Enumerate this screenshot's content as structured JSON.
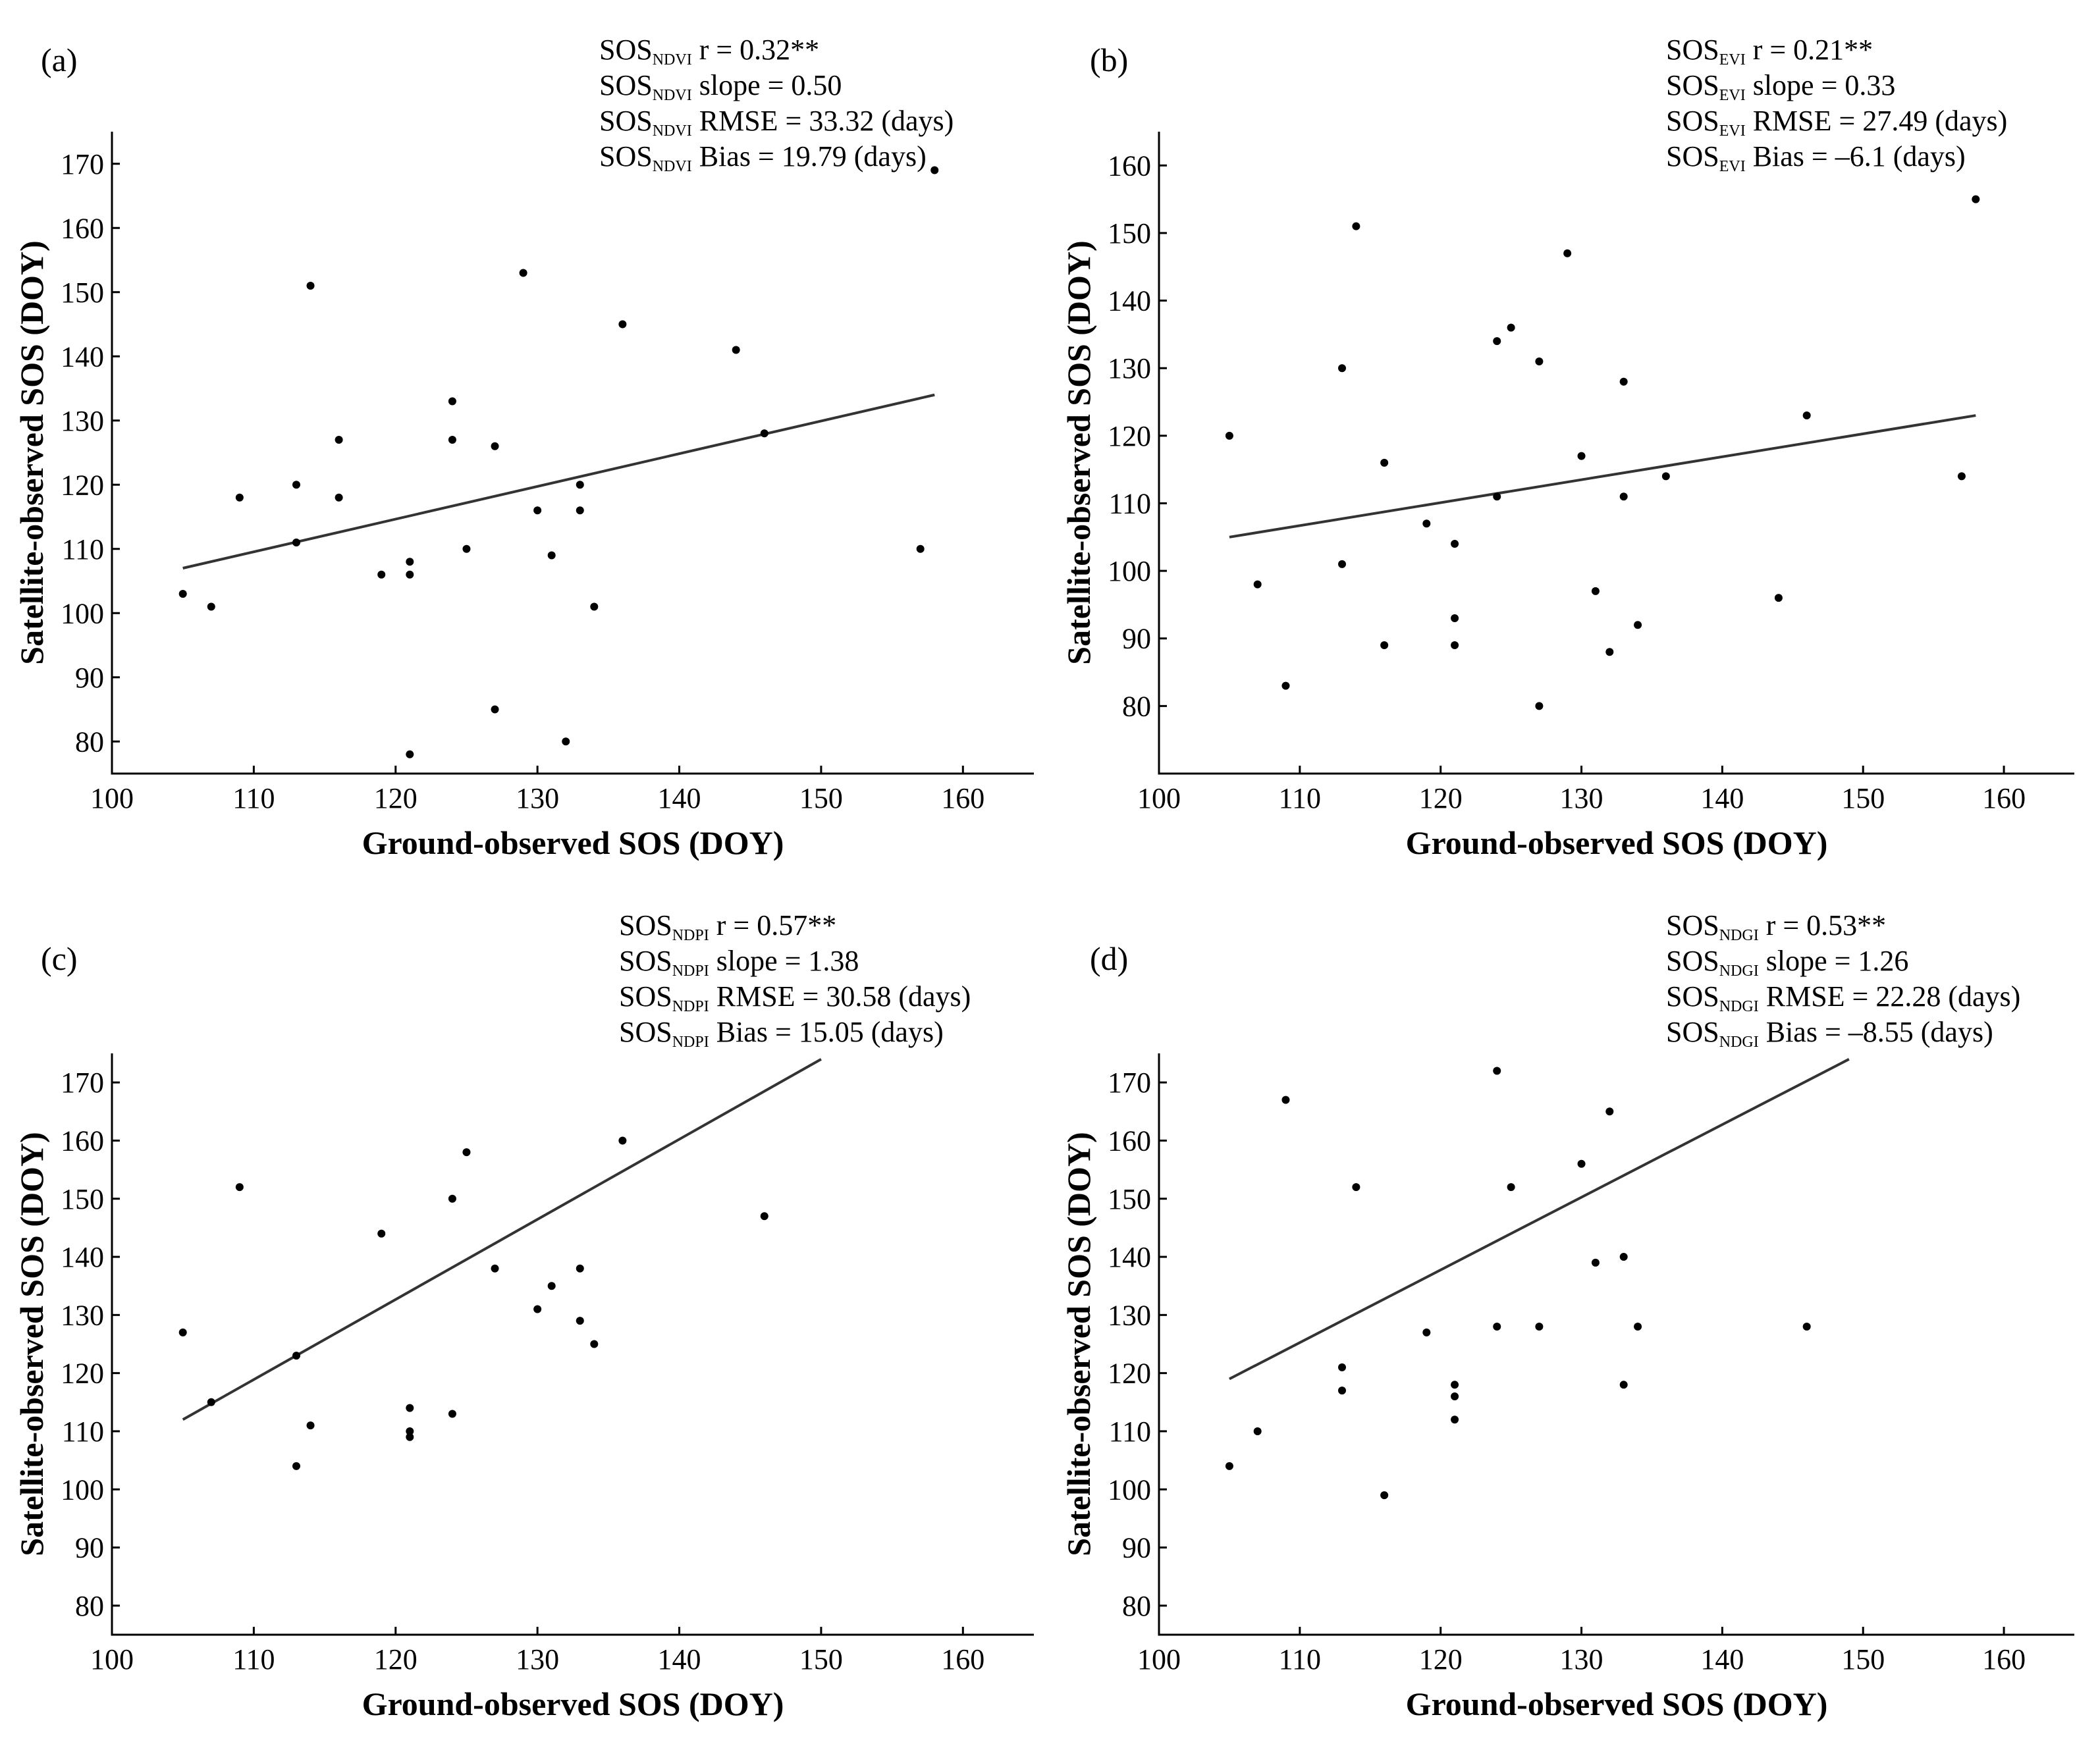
{
  "chart_data": [
    {
      "type": "scatter",
      "panel_label": "(a)",
      "xlabel": "Ground-observed SOS (DOY)",
      "ylabel": "Satellite-observed SOS (DOY)",
      "xlim": [
        100,
        165
      ],
      "ylim": [
        75,
        175
      ],
      "xticks": [
        "100",
        "110",
        "120",
        "130",
        "140",
        "150",
        "160"
      ],
      "yticks": [
        "80",
        "90",
        "100",
        "110",
        "120",
        "130",
        "140",
        "150",
        "160",
        "170"
      ],
      "fit_line": [
        [
          105,
          107
        ],
        [
          158,
          134
        ]
      ],
      "points": [
        [
          105,
          103
        ],
        [
          107,
          101
        ],
        [
          109,
          118
        ],
        [
          113,
          120
        ],
        [
          113,
          111
        ],
        [
          114,
          151
        ],
        [
          116,
          127
        ],
        [
          116,
          118
        ],
        [
          119,
          106
        ],
        [
          121,
          108
        ],
        [
          121,
          106
        ],
        [
          121,
          78
        ],
        [
          124,
          133
        ],
        [
          124,
          127
        ],
        [
          125,
          110
        ],
        [
          127,
          126
        ],
        [
          127,
          85
        ],
        [
          129,
          153
        ],
        [
          130,
          116
        ],
        [
          131,
          109
        ],
        [
          132,
          80
        ],
        [
          133,
          120
        ],
        [
          133,
          116
        ],
        [
          134,
          101
        ],
        [
          136,
          145
        ],
        [
          144,
          141
        ],
        [
          146,
          128
        ],
        [
          157,
          110
        ],
        [
          158,
          169
        ]
      ],
      "stats": [
        {
          "prefix": "SOS",
          "sub": "NDVI",
          "text": " r = 0.32**"
        },
        {
          "prefix": "SOS",
          "sub": "NDVI",
          "text": " slope = 0.50"
        },
        {
          "prefix": "SOS",
          "sub": "NDVI",
          "text": " RMSE = 33.32 (days)"
        },
        {
          "prefix": "SOS",
          "sub": "NDVI",
          "text": " Bias = 19.79 (days)"
        }
      ]
    },
    {
      "type": "scatter",
      "panel_label": "(b)",
      "xlabel": "Ground-observed SOS (DOY)",
      "ylabel": "Satellite-observed SOS (DOY)",
      "xlim": [
        100,
        165
      ],
      "ylim": [
        70,
        165
      ],
      "xticks": [
        "100",
        "110",
        "120",
        "130",
        "140",
        "150",
        "160"
      ],
      "yticks": [
        "80",
        "90",
        "100",
        "110",
        "120",
        "130",
        "140",
        "150",
        "160"
      ],
      "fit_line": [
        [
          105,
          105
        ],
        [
          158,
          123
        ]
      ],
      "points": [
        [
          105,
          120
        ],
        [
          107,
          98
        ],
        [
          109,
          83
        ],
        [
          113,
          130
        ],
        [
          113,
          101
        ],
        [
          114,
          151
        ],
        [
          116,
          116
        ],
        [
          116,
          89
        ],
        [
          119,
          107
        ],
        [
          121,
          104
        ],
        [
          121,
          93
        ],
        [
          121,
          89
        ],
        [
          124,
          134
        ],
        [
          124,
          111
        ],
        [
          125,
          136
        ],
        [
          127,
          131
        ],
        [
          127,
          80
        ],
        [
          129,
          147
        ],
        [
          130,
          117
        ],
        [
          131,
          97
        ],
        [
          132,
          88
        ],
        [
          133,
          128
        ],
        [
          133,
          111
        ],
        [
          134,
          92
        ],
        [
          136,
          114
        ],
        [
          144,
          96
        ],
        [
          146,
          123
        ],
        [
          157,
          114
        ],
        [
          158,
          155
        ]
      ],
      "stats": [
        {
          "prefix": "SOS",
          "sub": "EVI",
          "text": " r = 0.21**"
        },
        {
          "prefix": "SOS",
          "sub": "EVI",
          "text": " slope = 0.33"
        },
        {
          "prefix": "SOS",
          "sub": "EVI",
          "text": " RMSE = 27.49 (days)"
        },
        {
          "prefix": "SOS",
          "sub": "EVI",
          "text": " Bias = –6.1 (days)"
        }
      ]
    },
    {
      "type": "scatter",
      "panel_label": "(c)",
      "xlabel": "Ground-observed SOS (DOY)",
      "ylabel": "Satellite-observed SOS (DOY)",
      "xlim": [
        100,
        165
      ],
      "ylim": [
        75,
        175
      ],
      "xticks": [
        "100",
        "110",
        "120",
        "130",
        "140",
        "150",
        "160"
      ],
      "yticks": [
        "80",
        "90",
        "100",
        "110",
        "120",
        "130",
        "140",
        "150",
        "160",
        "170"
      ],
      "fit_line": [
        [
          105,
          112
        ],
        [
          150,
          174
        ]
      ],
      "points": [
        [
          105,
          127
        ],
        [
          107,
          115
        ],
        [
          109,
          152
        ],
        [
          113,
          123
        ],
        [
          113,
          104
        ],
        [
          114,
          111
        ],
        [
          119,
          144
        ],
        [
          121,
          114
        ],
        [
          121,
          110
        ],
        [
          121,
          109
        ],
        [
          124,
          150
        ],
        [
          124,
          113
        ],
        [
          125,
          158
        ],
        [
          127,
          138
        ],
        [
          130,
          131
        ],
        [
          131,
          135
        ],
        [
          133,
          138
        ],
        [
          133,
          129
        ],
        [
          134,
          125
        ],
        [
          136,
          160
        ],
        [
          146,
          147
        ]
      ],
      "stats": [
        {
          "prefix": "SOS",
          "sub": "NDPI",
          "text": " r = 0.57**"
        },
        {
          "prefix": "SOS",
          "sub": "NDPI",
          "text": " slope = 1.38"
        },
        {
          "prefix": "SOS",
          "sub": "NDPI",
          "text": " RMSE = 30.58 (days)"
        },
        {
          "prefix": "SOS",
          "sub": "NDPI",
          "text": " Bias = 15.05 (days)"
        }
      ]
    },
    {
      "type": "scatter",
      "panel_label": "(d)",
      "xlabel": "Ground-observed SOS (DOY)",
      "ylabel": "Satellite-observed SOS (DOY)",
      "xlim": [
        100,
        165
      ],
      "ylim": [
        75,
        175
      ],
      "xticks": [
        "100",
        "110",
        "120",
        "130",
        "140",
        "150",
        "160"
      ],
      "yticks": [
        "80",
        "90",
        "100",
        "110",
        "120",
        "130",
        "140",
        "150",
        "160",
        "170"
      ],
      "fit_line": [
        [
          105,
          119
        ],
        [
          149,
          174
        ]
      ],
      "points": [
        [
          105,
          104
        ],
        [
          107,
          110
        ],
        [
          109,
          167
        ],
        [
          113,
          121
        ],
        [
          113,
          117
        ],
        [
          114,
          152
        ],
        [
          116,
          99
        ],
        [
          119,
          127
        ],
        [
          121,
          118
        ],
        [
          121,
          116
        ],
        [
          121,
          112
        ],
        [
          124,
          172
        ],
        [
          124,
          128
        ],
        [
          125,
          152
        ],
        [
          127,
          128
        ],
        [
          130,
          156
        ],
        [
          131,
          139
        ],
        [
          132,
          165
        ],
        [
          133,
          140
        ],
        [
          133,
          118
        ],
        [
          134,
          128
        ],
        [
          146,
          128
        ]
      ],
      "stats": [
        {
          "prefix": "SOS",
          "sub": "NDGI",
          "text": " r = 0.53**"
        },
        {
          "prefix": "SOS",
          "sub": "NDGI",
          "text": " slope = 1.26"
        },
        {
          "prefix": "SOS",
          "sub": "NDGI",
          "text": " RMSE = 22.28 (days)"
        },
        {
          "prefix": "SOS",
          "sub": "NDGI",
          "text": " Bias = –8.55 (days)"
        }
      ]
    }
  ]
}
